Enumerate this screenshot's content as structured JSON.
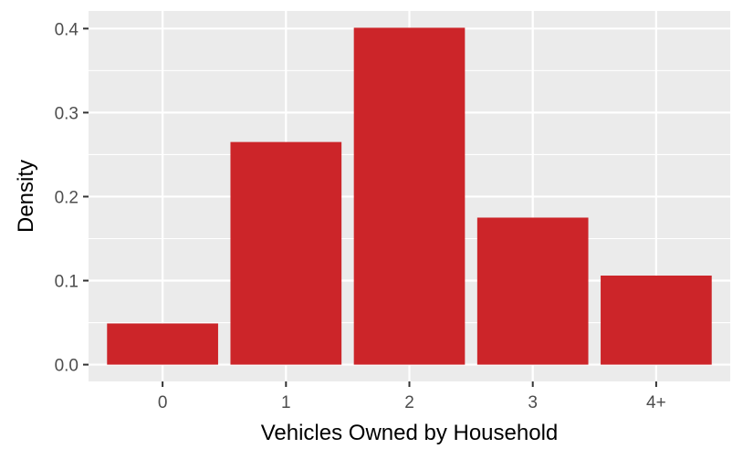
{
  "chart_data": {
    "type": "bar",
    "categories": [
      "0",
      "1",
      "2",
      "3",
      "4+"
    ],
    "values": [
      0.049,
      0.265,
      0.401,
      0.175,
      0.106
    ],
    "title": "",
    "xlabel": "Vehicles Owned by Household",
    "ylabel": "Density",
    "ylim": [
      -0.02,
      0.421
    ],
    "yticks": [
      0.0,
      0.1,
      0.2,
      0.3,
      0.4
    ],
    "ytick_labels": [
      "0.0",
      "0.1",
      "0.2",
      "0.3",
      "0.4"
    ],
    "grid": true,
    "legend": "none",
    "colors": {
      "bar": "#cc2529",
      "panel": "#ebebeb",
      "grid": "#ffffff",
      "tick_text": "#4d4d4d",
      "tick_mark": "#333333"
    }
  }
}
